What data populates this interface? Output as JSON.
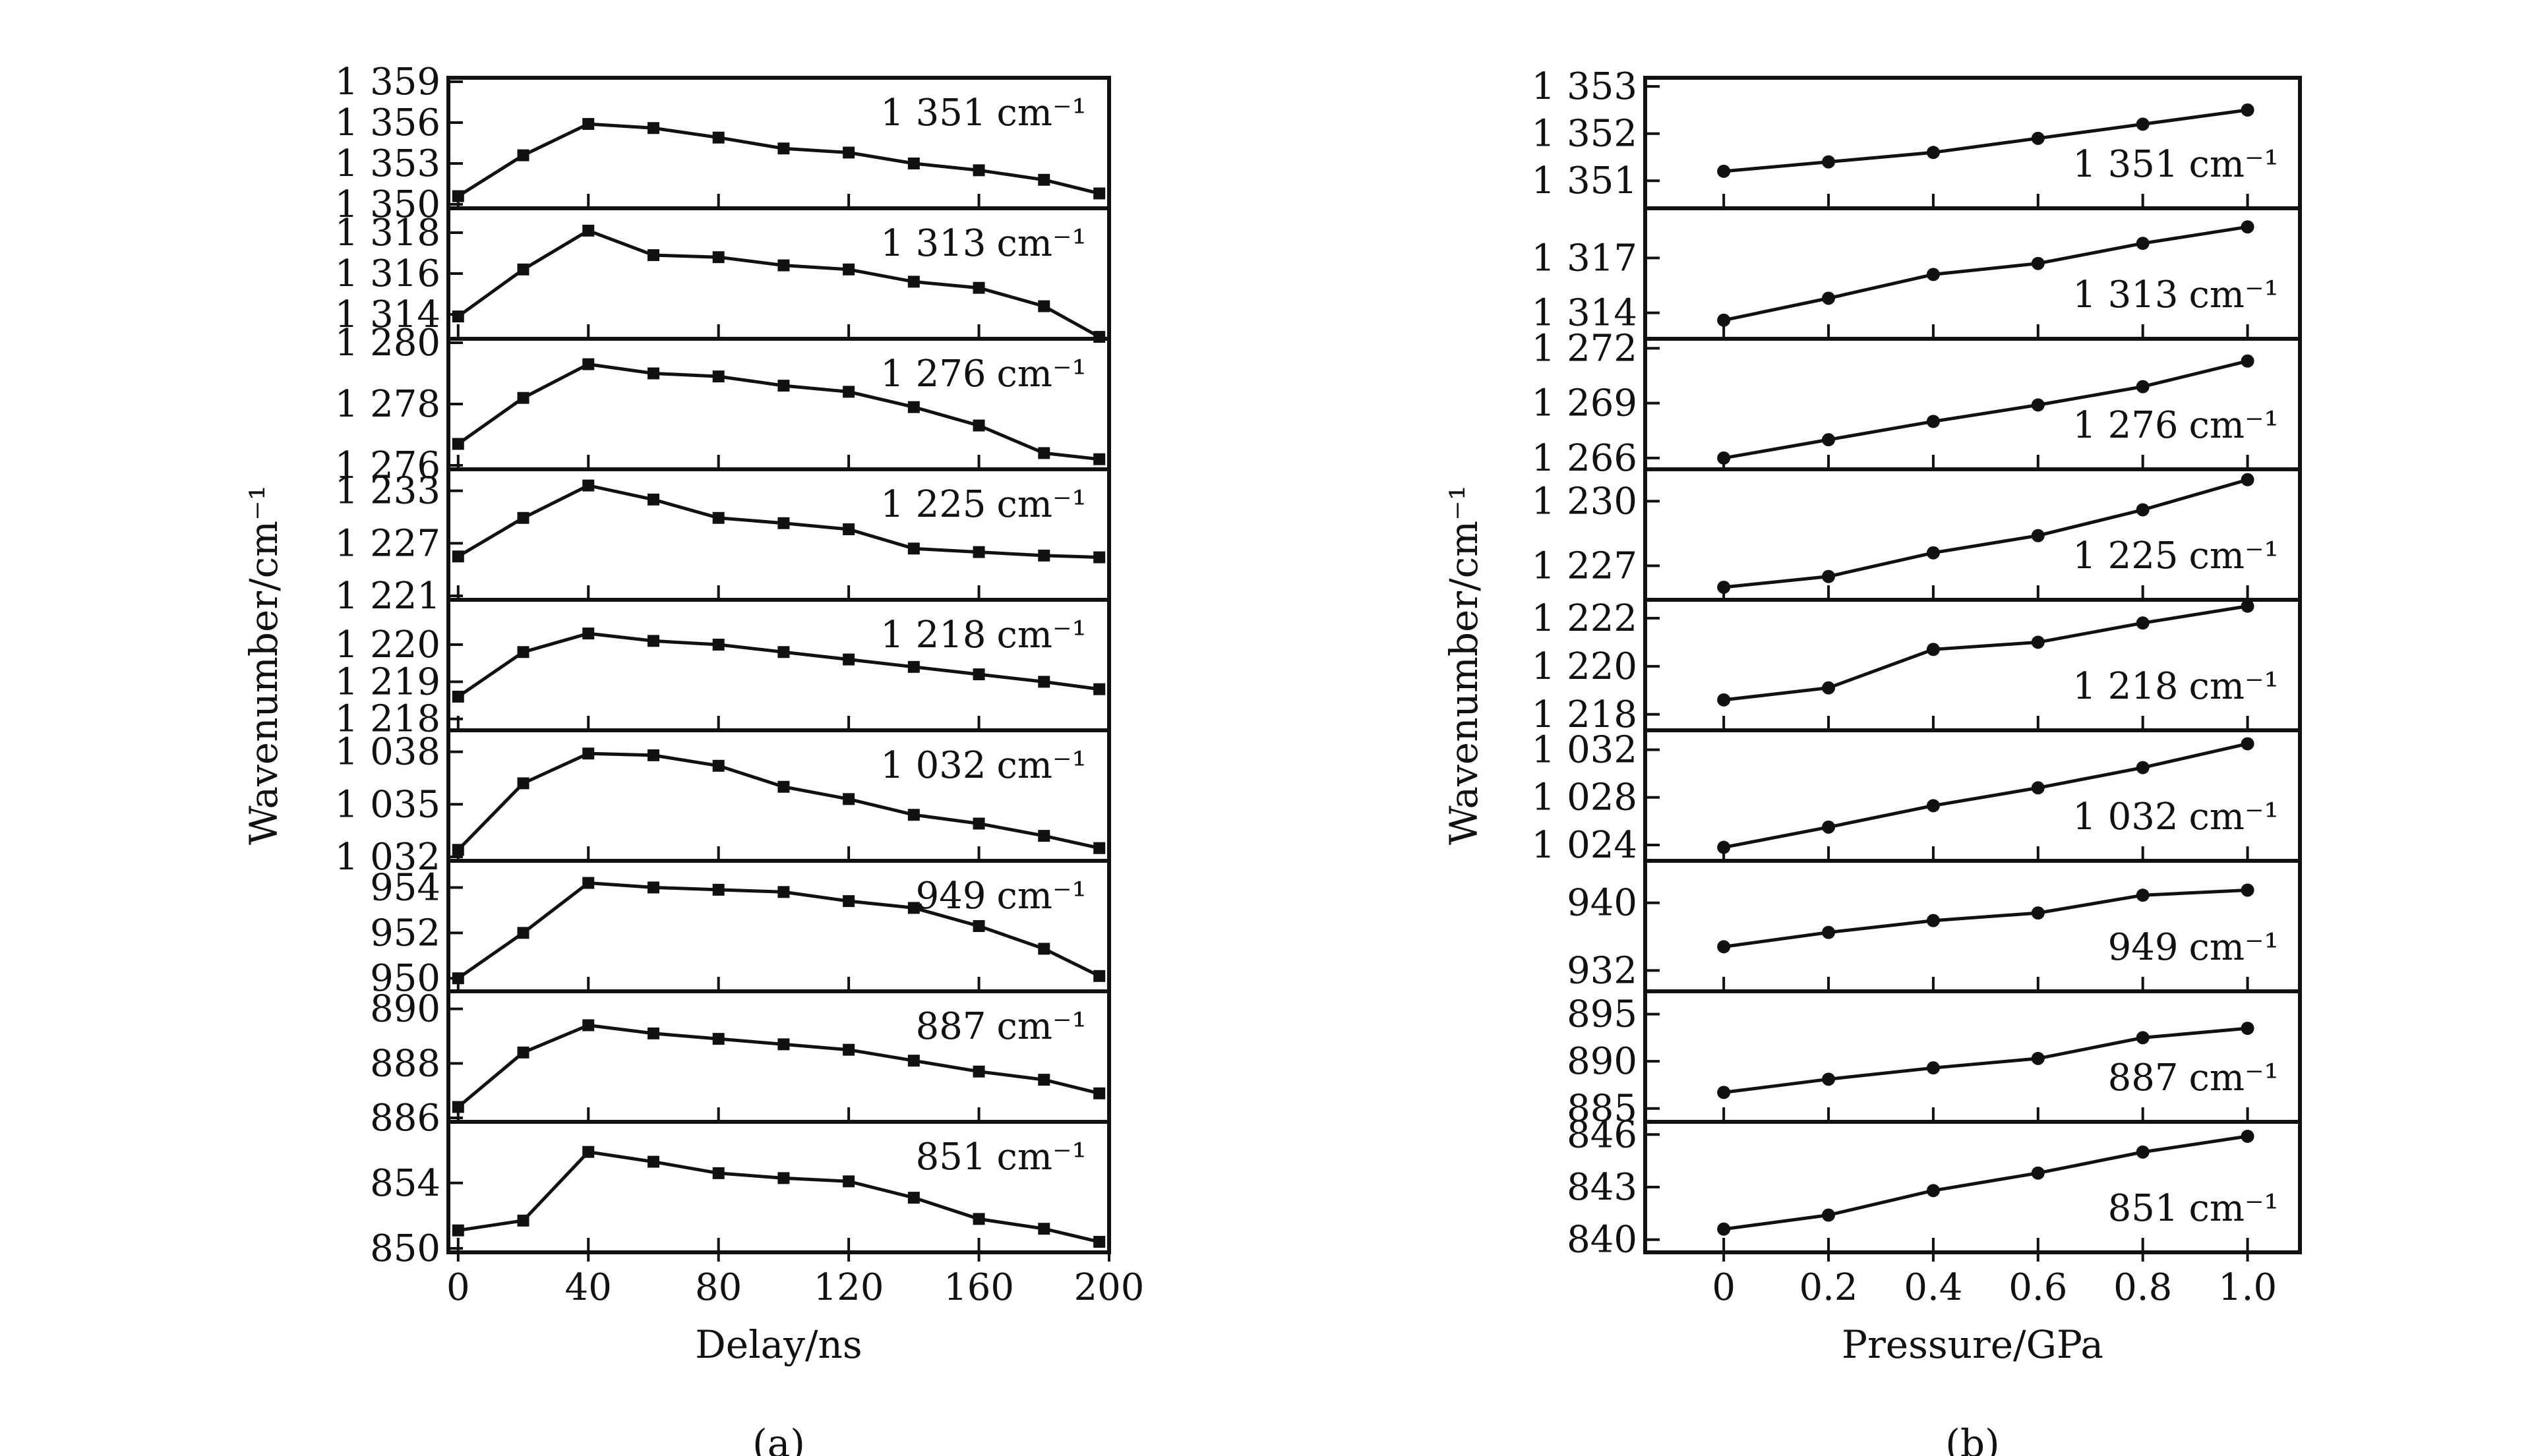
{
  "chart_data": [
    {
      "type": "line",
      "caption": "(a)",
      "xlabel": "Delay/ns",
      "ylabel": "Wavenumber/cm⁻¹",
      "xlim": [
        -3,
        200
      ],
      "xticks": [
        0,
        40,
        80,
        120,
        160,
        200
      ],
      "xtick_labels": [
        "0",
        "40",
        "80",
        "120",
        "160",
        "200"
      ],
      "marker": "square",
      "x": [
        0,
        20,
        40,
        60,
        80,
        100,
        120,
        140,
        160,
        180,
        197
      ],
      "panels": [
        {
          "band": "1 351",
          "unit": "cm⁻¹",
          "ylim": [
            1350,
            1359
          ],
          "yticks": [
            1350,
            1353,
            1356,
            1359
          ],
          "ytick_labels": [
            "1 350",
            "1 353",
            "1 356",
            "1 359"
          ],
          "values": [
            1350.6,
            1353.6,
            1355.9,
            1355.6,
            1354.9,
            1354.1,
            1353.8,
            1353.0,
            1352.5,
            1351.8,
            1350.8
          ]
        },
        {
          "band": "1 313",
          "unit": "cm⁻¹",
          "ylim": [
            1313,
            1319
          ],
          "yticks": [
            1314,
            1316,
            1318
          ],
          "ytick_labels": [
            "1 314",
            "1 316",
            "1 318"
          ],
          "values": [
            1313.9,
            1316.2,
            1318.1,
            1316.9,
            1316.8,
            1316.4,
            1316.2,
            1315.6,
            1315.3,
            1314.4,
            1312.9
          ]
        },
        {
          "band": "1 276",
          "unit": "cm⁻¹",
          "ylim": [
            1276,
            1280
          ],
          "yticks": [
            1276,
            1278,
            1280
          ],
          "ytick_labels": [
            "1 276",
            "1 278",
            "1 280"
          ],
          "values": [
            1276.7,
            1278.2,
            1279.3,
            1279.0,
            1278.9,
            1278.6,
            1278.4,
            1277.9,
            1277.3,
            1276.4,
            1276.2
          ]
        },
        {
          "band": "1 225",
          "unit": "cm⁻¹",
          "ylim": [
            1221,
            1235
          ],
          "yticks": [
            1221,
            1227,
            1233
          ],
          "ytick_labels": [
            "1 221",
            "1 227",
            "1 233"
          ],
          "values": [
            1225.5,
            1229.9,
            1233.6,
            1232.0,
            1229.9,
            1229.3,
            1228.6,
            1226.4,
            1226.0,
            1225.6,
            1225.4
          ]
        },
        {
          "band": "1 218",
          "unit": "cm⁻¹",
          "ylim": [
            1217.8,
            1221.1
          ],
          "yticks": [
            1218,
            1219,
            1220
          ],
          "ytick_labels": [
            "1 218",
            "1 219",
            "1 220"
          ],
          "values": [
            1218.6,
            1219.8,
            1220.3,
            1220.1,
            1220.0,
            1219.8,
            1219.6,
            1219.4,
            1219.2,
            1219.0,
            1218.8
          ]
        },
        {
          "band": "1 032",
          "unit": "cm⁻¹",
          "ylim": [
            1032,
            1039
          ],
          "yticks": [
            1032,
            1035,
            1038
          ],
          "ytick_labels": [
            "1 032",
            "1 035",
            "1 038"
          ],
          "values": [
            1032.4,
            1036.2,
            1037.9,
            1037.8,
            1037.2,
            1036.0,
            1035.3,
            1034.4,
            1033.9,
            1033.2,
            1032.5
          ]
        },
        {
          "band": "949",
          "unit": "cm⁻¹",
          "ylim": [
            949.6,
            955
          ],
          "yticks": [
            950,
            952,
            954
          ],
          "ytick_labels": [
            "950",
            "952",
            "954"
          ],
          "values": [
            950.0,
            952.0,
            954.2,
            954.0,
            953.9,
            953.8,
            953.4,
            953.1,
            952.3,
            951.3,
            950.1
          ]
        },
        {
          "band": "887",
          "unit": "cm⁻¹",
          "ylim": [
            886,
            890.5
          ],
          "yticks": [
            886,
            888,
            890
          ],
          "ytick_labels": [
            "886",
            "888",
            "890"
          ],
          "values": [
            886.4,
            888.4,
            889.4,
            889.1,
            888.9,
            888.7,
            888.5,
            888.1,
            887.7,
            887.4,
            886.9
          ]
        },
        {
          "band": "851",
          "unit": "cm⁻¹",
          "ylim": [
            850,
            857.5
          ],
          "yticks": [
            850,
            854
          ],
          "ytick_labels": [
            "850",
            "854"
          ],
          "values": [
            851.1,
            851.7,
            855.9,
            855.3,
            854.6,
            854.3,
            854.1,
            853.1,
            851.8,
            851.2,
            850.4
          ]
        }
      ]
    },
    {
      "type": "line",
      "caption": "(b)",
      "xlabel": "Pressure/GPa",
      "ylabel": "Wavenumber/cm⁻¹",
      "xlim": [
        -0.15,
        1.1
      ],
      "xticks": [
        0,
        0.2,
        0.4,
        0.6,
        0.8,
        1.0
      ],
      "xtick_labels": [
        "0",
        "0.2",
        "0.4",
        "0.6",
        "0.8",
        "1.0"
      ],
      "marker": "circle",
      "x": [
        0,
        0.2,
        0.4,
        0.6,
        0.8,
        1.0
      ],
      "panels": [
        {
          "band": "1 351",
          "unit": "cm⁻¹",
          "ylim": [
            1350.5,
            1353.1
          ],
          "yticks": [
            1351,
            1352,
            1353
          ],
          "ytick_labels": [
            "1 351",
            "1 352",
            "1 353"
          ],
          "values": [
            1351.2,
            1351.4,
            1351.6,
            1351.9,
            1352.2,
            1352.5
          ]
        },
        {
          "band": "1 313",
          "unit": "cm⁻¹",
          "ylim": [
            1312.8,
            1319.5
          ],
          "yticks": [
            1314,
            1317
          ],
          "ytick_labels": [
            "1 314",
            "1 317"
          ],
          "values": [
            1313.6,
            1314.8,
            1316.1,
            1316.7,
            1317.8,
            1318.7
          ]
        },
        {
          "band": "1 276",
          "unit": "cm⁻¹",
          "ylim": [
            1265.6,
            1272.3
          ],
          "yticks": [
            1266,
            1269,
            1272
          ],
          "ytick_labels": [
            "1 266",
            "1 269",
            "1 272"
          ],
          "values": [
            1266.0,
            1267.0,
            1268.0,
            1268.9,
            1269.9,
            1271.3
          ]
        },
        {
          "band": "1 225",
          "unit": "cm⁻¹",
          "ylim": [
            1225.6,
            1231.3
          ],
          "yticks": [
            1227,
            1230
          ],
          "ytick_labels": [
            "1 227",
            "1 230"
          ],
          "values": [
            1226.0,
            1226.5,
            1227.6,
            1228.4,
            1229.6,
            1231.0
          ]
        },
        {
          "band": "1 218",
          "unit": "cm⁻¹",
          "ylim": [
            1217.5,
            1222.6
          ],
          "yticks": [
            1218,
            1220,
            1222
          ],
          "ytick_labels": [
            "1 218",
            "1 220",
            "1 222"
          ],
          "values": [
            1218.6,
            1219.1,
            1220.7,
            1221.0,
            1221.8,
            1222.5
          ]
        },
        {
          "band": "1 032",
          "unit": "cm⁻¹",
          "ylim": [
            1023,
            1033.3
          ],
          "yticks": [
            1024,
            1028,
            1032
          ],
          "ytick_labels": [
            "1 024",
            "1 028",
            "1 032"
          ],
          "values": [
            1023.8,
            1025.5,
            1027.3,
            1028.8,
            1030.5,
            1032.5
          ]
        },
        {
          "band": "949",
          "unit": "cm⁻¹",
          "ylim": [
            930,
            944.5
          ],
          "yticks": [
            932,
            940
          ],
          "ytick_labels": [
            "932",
            "940"
          ],
          "values": [
            934.8,
            936.5,
            937.9,
            938.8,
            940.9,
            941.5
          ]
        },
        {
          "band": "887",
          "unit": "cm⁻¹",
          "ylim": [
            884,
            897
          ],
          "yticks": [
            885,
            890,
            895
          ],
          "ytick_labels": [
            "885",
            "890",
            "895"
          ],
          "values": [
            886.7,
            888.1,
            889.3,
            890.3,
            892.5,
            893.5
          ]
        },
        {
          "band": "851",
          "unit": "cm⁻¹",
          "ylim": [
            839.5,
            846.5
          ],
          "yticks": [
            840,
            843,
            846
          ],
          "ytick_labels": [
            "840",
            "843",
            "846"
          ],
          "values": [
            840.6,
            841.4,
            842.8,
            843.8,
            845.0,
            845.9
          ]
        }
      ]
    }
  ]
}
